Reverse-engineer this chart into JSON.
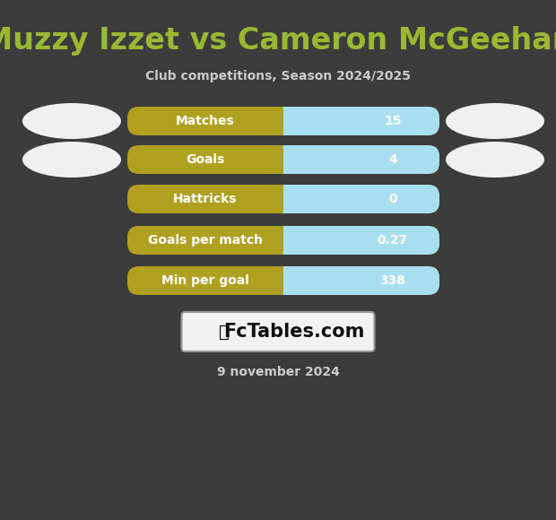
{
  "title": "Muzzy Izzet vs Cameron McGeehan",
  "subtitle": "Club competitions, Season 2024/2025",
  "date_text": "9 november 2024",
  "background_color": "#3c3c3c",
  "title_color": "#9ab832",
  "subtitle_color": "#cccccc",
  "date_color": "#cccccc",
  "bar_label_color": "#ffffff",
  "bar_value_color": "#ffffff",
  "bar_left_color": "#b0a020",
  "bar_right_color": "#a8dff0",
  "ellipse_color": "#f0f0f0",
  "rows": [
    {
      "label": "Matches",
      "value": "15",
      "has_ellipse": true
    },
    {
      "label": "Goals",
      "value": "4",
      "has_ellipse": true
    },
    {
      "label": "Hattricks",
      "value": "0",
      "has_ellipse": false
    },
    {
      "label": "Goals per match",
      "value": "0.27",
      "has_ellipse": false
    },
    {
      "label": "Min per goal",
      "value": "338",
      "has_ellipse": false
    }
  ],
  "fctables_text": "FcTables.com",
  "title_fontsize": 24,
  "subtitle_fontsize": 10,
  "bar_fontsize": 10,
  "date_fontsize": 10,
  "fig_width": 6.2,
  "fig_height": 5.8,
  "dpi": 100
}
